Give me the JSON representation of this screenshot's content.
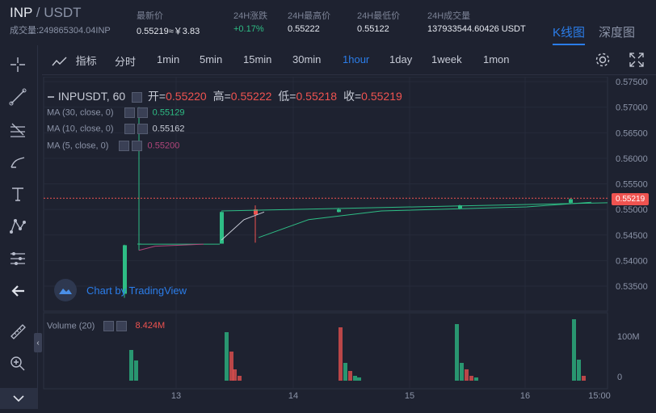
{
  "header": {
    "base": "INP",
    "slash": "/",
    "quote": "USDT",
    "volume_label": "成交量:249865304.04INP",
    "stats": [
      {
        "label": "最新价",
        "value": "0.55219≈￥3.83",
        "color": "white"
      },
      {
        "label": "24H涨跌",
        "value": "+0.17%",
        "color": "green"
      },
      {
        "label": "24H最高价",
        "value": "0.55222",
        "color": "white"
      },
      {
        "label": "24H最低价",
        "value": "0.55122",
        "color": "white"
      },
      {
        "label": "24H成交量",
        "value": "137933544.60426 USDT",
        "color": "white"
      }
    ],
    "tabs": {
      "kline": "K线图",
      "depth": "深度图"
    }
  },
  "toolbar": {
    "indicators": "指标",
    "intervals": [
      "分时",
      "1min",
      "5min",
      "15min",
      "30min",
      "1hour",
      "1day",
      "1week",
      "1mon"
    ],
    "active_interval": "1hour"
  },
  "left_tools": [
    "crosshair-icon",
    "trend-line-icon",
    "fib-icon",
    "brush-icon",
    "text-icon",
    "pattern-icon",
    "measure-icon",
    "back-arrow-icon",
    "ruler-icon",
    "zoom-icon",
    "collapse-icon"
  ],
  "legend": {
    "symbol": "INPUSDT, 60",
    "open_label": "开=",
    "open": "0.55220",
    "high_label": "高=",
    "high": "0.55222",
    "low_label": "低=",
    "low": "0.55218",
    "close_label": "收=",
    "close": "0.55219",
    "ma30": {
      "label": "MA (30, close, 0)",
      "value": "0.55129",
      "color": "#2ebd85"
    },
    "ma10": {
      "label": "MA (10, close, 0)",
      "value": "0.55162",
      "color": "#c7cbd6"
    },
    "ma5": {
      "label": "MA (5, close, 0)",
      "value": "0.55200",
      "color": "#b0457a"
    },
    "volume": {
      "label": "Volume (20)",
      "value": "8.424M"
    }
  },
  "watermark": "Chart by TradingView",
  "price_axis": [
    "0.57500",
    "0.57000",
    "0.56500",
    "0.56000",
    "0.55500",
    "0.55000",
    "0.54500",
    "0.54000",
    "0.53500"
  ],
  "last_price_tag": "0.55219",
  "volume_axis": [
    "100M",
    "0"
  ],
  "time_axis": [
    "13",
    "14",
    "15",
    "16",
    "15:00"
  ],
  "colors": {
    "up": "#2ebd85",
    "down": "#ef5350",
    "accent": "#2b7de9",
    "bg": "#1e2230"
  }
}
